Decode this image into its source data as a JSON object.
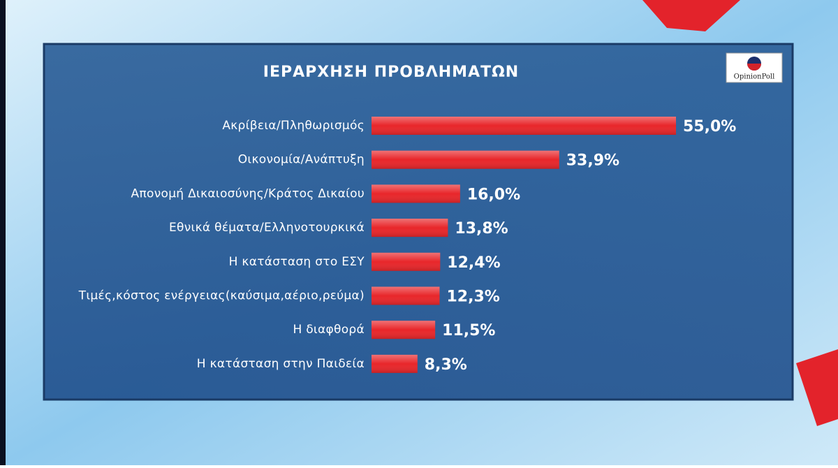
{
  "chart_data": {
    "type": "bar",
    "orientation": "horizontal",
    "title": "ΙΕΡΑΡΧΗΣΗ  ΠΡΟΒΛΗΜΑΤΩΝ",
    "logo": "OpinionPoll",
    "categories": [
      "Ακρίβεια/Πληθωρισμός",
      "Οικονομία/Ανάπτυξη",
      "Απονομή Δικαιοσύνης/Κράτος Δικαίου",
      "Εθνικά θέματα/Ελληνοτουρκικά",
      "Η κατάσταση στο ΕΣΥ",
      "Τιμές,κόστος ενέργειας(καύσιμα,αέριο,ρεύμα)",
      "Η διαφθορά",
      "Η κατάσταση στην Παιδεία"
    ],
    "values": [
      55.0,
      33.9,
      16.0,
      13.8,
      12.4,
      12.3,
      11.5,
      8.3
    ],
    "value_labels": [
      "55,0%",
      "33,9%",
      "16,0%",
      "13,8%",
      "12,4%",
      "12,3%",
      "11,5%",
      "8,3%"
    ],
    "color": "#e8262a"
  }
}
